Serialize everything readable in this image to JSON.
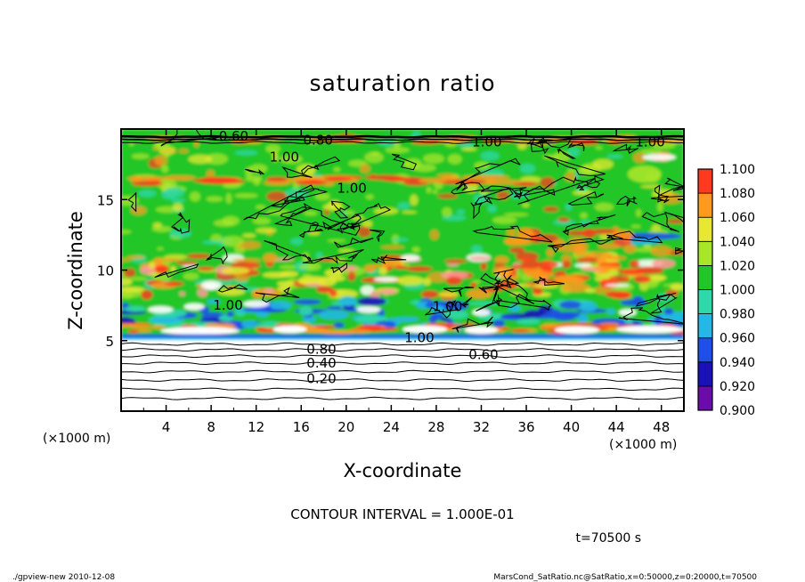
{
  "chart_data": {
    "type": "heatmap",
    "title": "saturation ratio",
    "xlabel": "X-coordinate",
    "ylabel": "Z-coordinate",
    "x_unit": "(×1000 m)",
    "z_unit": "(×1000 m)",
    "xlim": [
      0,
      50
    ],
    "ylim": [
      0,
      20
    ],
    "x_ticks": [
      "4",
      "8",
      "12",
      "16",
      "20",
      "24",
      "28",
      "32",
      "36",
      "40",
      "44",
      "48"
    ],
    "y_ticks": [
      "5",
      "10",
      "15"
    ],
    "y_tick_values": [
      5,
      10,
      15
    ],
    "colorbar": {
      "levels": [
        "0.900",
        "0.920",
        "0.940",
        "0.960",
        "0.980",
        "1.000",
        "1.020",
        "1.040",
        "1.060",
        "1.080",
        "1.100"
      ],
      "colors": [
        "#6a0ca8",
        "#1a12b8",
        "#1f4fe8",
        "#25b7e6",
        "#2fd8a8",
        "#22c628",
        "#a8e62a",
        "#e8e832",
        "#ff9a1e",
        "#ff3a1e",
        "#ff9a9a"
      ]
    },
    "contour_labels": [
      {
        "text": "0.20",
        "x": 17.8,
        "z": 2.3
      },
      {
        "text": "0.40",
        "x": 17.8,
        "z": 3.4
      },
      {
        "text": "0.60",
        "x": 32.2,
        "z": 4.0
      },
      {
        "text": "0.80",
        "x": 17.8,
        "z": 4.4
      },
      {
        "text": "1.00",
        "x": 26.5,
        "z": 5.2
      },
      {
        "text": "1.00",
        "x": 9.5,
        "z": 7.5
      },
      {
        "text": "1.00",
        "x": 29.0,
        "z": 7.4
      },
      {
        "text": "1.00",
        "x": 20.5,
        "z": 15.8
      },
      {
        "text": "1.00",
        "x": 14.5,
        "z": 18.0
      },
      {
        "text": "0.60",
        "x": 10.0,
        "z": 19.5
      },
      {
        "text": "0.80",
        "x": 17.5,
        "z": 19.2
      },
      {
        "text": "1.00",
        "x": 32.5,
        "z": 19.1
      },
      {
        "text": "1.00",
        "x": 47.0,
        "z": 19.1
      }
    ],
    "contour_interval": "CONTOUR INTERVAL = 1.000E-01",
    "time": "t=70500 s"
  },
  "footer": {
    "left": "./gpview-new  2010-12-08",
    "right": "MarsCond_SatRatio.nc@SatRatio,x=0:50000,z=0:20000,t=70500"
  }
}
